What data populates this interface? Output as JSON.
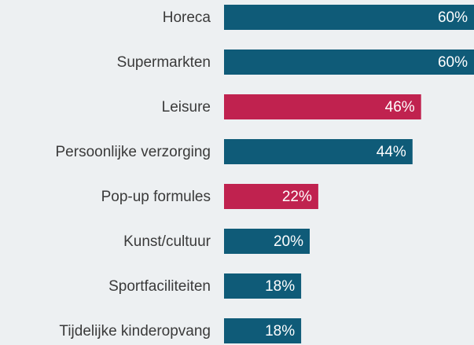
{
  "chart_data": {
    "type": "barh",
    "categories": [
      "Horeca",
      "Supermarkten",
      "Leisure",
      "Persoonlijke verzorging",
      "Pop-up formules",
      "Kunst/cultuur",
      "Sportfaciliteiten",
      "Tijdelijke kinderopvang"
    ],
    "values": [
      60,
      60,
      46,
      44,
      22,
      20,
      18,
      18
    ],
    "value_labels": [
      "60%",
      "60%",
      "46%",
      "44%",
      "22%",
      "20%",
      "18%",
      "18%"
    ],
    "colors": [
      "#0f5b78",
      "#0f5b78",
      "#c0224f",
      "#0f5b78",
      "#c0224f",
      "#0f5b78",
      "#0f5b78",
      "#0f5b78"
    ]
  }
}
